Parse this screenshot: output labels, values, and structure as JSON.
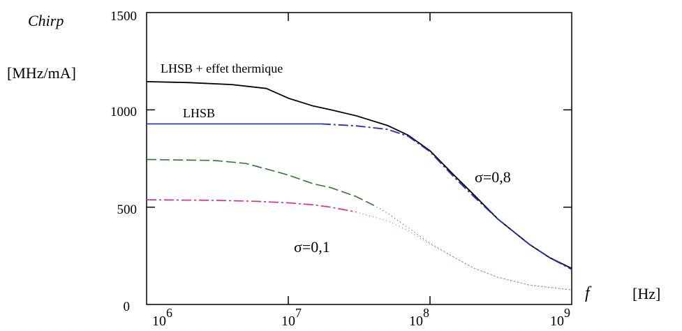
{
  "chart_data": {
    "type": "line",
    "xscale": "log",
    "xlim": [
      1000000,
      1000000000
    ],
    "ylim": [
      0,
      1500
    ],
    "yticks": [
      0,
      500,
      1000,
      1500
    ],
    "ytick_labels": [
      "0",
      "500",
      "1000",
      "1500"
    ],
    "xticks": [
      1000000,
      10000000,
      100000000,
      1000000000
    ],
    "xtick_labels": [
      {
        "base": "10",
        "exp": "6"
      },
      {
        "base": "10",
        "exp": "7"
      },
      {
        "base": "10",
        "exp": "8"
      },
      {
        "base": "10",
        "exp": "9"
      }
    ],
    "ylabel_top": "Chirp",
    "ylabel_unit": "[MHz/mA]",
    "xlabel": "f",
    "xlabel_unit": "[Hz]",
    "grid": false,
    "annotations": {
      "thermal_label": "LHSB + effet thermique",
      "lhsb_label": "LHSB",
      "sigma_high": "σ=0,8",
      "sigma_low": "σ=0,1"
    },
    "series": [
      {
        "color": "#000000",
        "dash": "",
        "width": 1.8,
        "x": [
          1000000,
          2000000,
          4000000,
          7000000,
          10000000,
          15000000,
          20000000,
          30000000,
          50000000,
          70000000,
          100000000,
          150000000,
          200000000,
          300000000,
          500000000,
          700000000,
          1000000000
        ],
        "y": [
          1145,
          1140,
          1130,
          1110,
          1060,
          1020,
          1000,
          970,
          920,
          870,
          790,
          660,
          570,
          440,
          310,
          240,
          185
        ]
      },
      {
        "color": "#1f2fbf",
        "dash": "",
        "width": 1.6,
        "x": [
          1000000,
          3000000,
          10000000,
          17000000
        ],
        "y": [
          928,
          928,
          928,
          928
        ]
      },
      {
        "color": "#1f2fbf",
        "dash": "14 4 3 4",
        "width": 1.8,
        "x": [
          17000000,
          30000000,
          50000000,
          70000000,
          100000000,
          150000000,
          200000000,
          300000000,
          500000000,
          700000000,
          1000000000
        ],
        "y": [
          928,
          918,
          900,
          865,
          785,
          650,
          560,
          440,
          310,
          240,
          180
        ]
      },
      {
        "color": "#2a7a2a",
        "dash": "14 5",
        "width": 1.6,
        "x": [
          1000000,
          3000000,
          5000000,
          8000000,
          10000000,
          15000000,
          20000000,
          30000000,
          40000000
        ],
        "y": [
          745,
          740,
          725,
          685,
          665,
          620,
          600,
          555,
          510
        ]
      },
      {
        "color": "#2a7a2a",
        "dash": "1 4",
        "width": 1.2,
        "x": [
          40000000,
          50000000,
          70000000,
          100000000,
          150000000,
          200000000,
          300000000,
          500000000,
          1000000000
        ],
        "y": [
          510,
          470,
          395,
          315,
          240,
          190,
          140,
          100,
          75
        ]
      },
      {
        "color": "#e0218a",
        "dash": "14 4 3 4",
        "width": 1.6,
        "x": [
          1000000,
          3000000,
          6000000,
          10000000,
          15000000,
          20000000,
          30000000
        ],
        "y": [
          538,
          535,
          530,
          522,
          512,
          500,
          475
        ]
      },
      {
        "color": "#e35a7a",
        "dash": "1 4",
        "width": 1.2,
        "x": [
          30000000,
          50000000,
          70000000,
          100000000,
          150000000,
          200000000,
          300000000,
          500000000,
          1000000000
        ],
        "y": [
          475,
          430,
          380,
          310,
          240,
          190,
          140,
          100,
          75
        ]
      }
    ]
  }
}
